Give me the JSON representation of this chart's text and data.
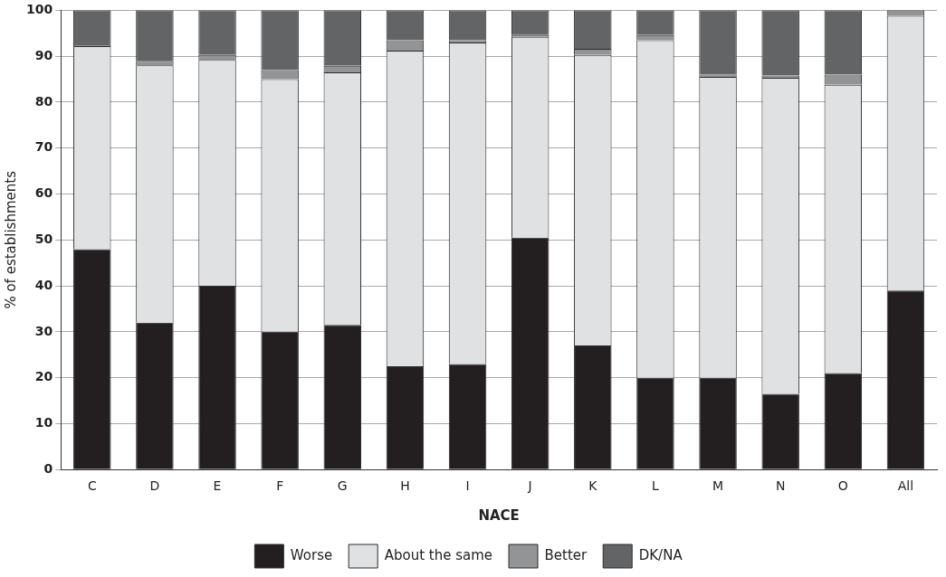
{
  "chart_data": {
    "type": "bar",
    "stacked": true,
    "xlabel": "NACE",
    "ylabel": "% of establishments",
    "categories": [
      "C",
      "D",
      "E",
      "F",
      "G",
      "H",
      "I",
      "J",
      "K",
      "L",
      "M",
      "N",
      "O",
      "All"
    ],
    "ylim": [
      0,
      100
    ],
    "yticks": [
      0,
      10,
      20,
      30,
      40,
      50,
      60,
      70,
      80,
      90,
      100
    ],
    "grid": "y",
    "legend": "bottom",
    "series": [
      {
        "name": "Worse",
        "color": "#231f20",
        "values": [
          48,
          32,
          40,
          30,
          31.5,
          22.5,
          23,
          50.5,
          27,
          20,
          20,
          16.5,
          21,
          39
        ]
      },
      {
        "name": "About the same",
        "color": "#e0e1e3",
        "values": [
          44.2,
          56,
          49.2,
          55,
          55,
          68.7,
          70,
          43.7,
          63.3,
          73.5,
          65.5,
          68.8,
          62.8,
          59.8
        ]
      },
      {
        "name": "Better",
        "color": "#939496",
        "values": [
          0.2,
          1,
          1.1,
          2,
          1.4,
          2.3,
          0.5,
          0.4,
          1.3,
          1.1,
          0.5,
          0.5,
          2.2,
          1.2
        ]
      },
      {
        "name": "DK/NA",
        "color": "#636466",
        "values": [
          7.6,
          11,
          9.7,
          13,
          12.1,
          6.5,
          6.5,
          5.4,
          8.4,
          5.4,
          14,
          14.2,
          14,
          0
        ]
      }
    ]
  }
}
